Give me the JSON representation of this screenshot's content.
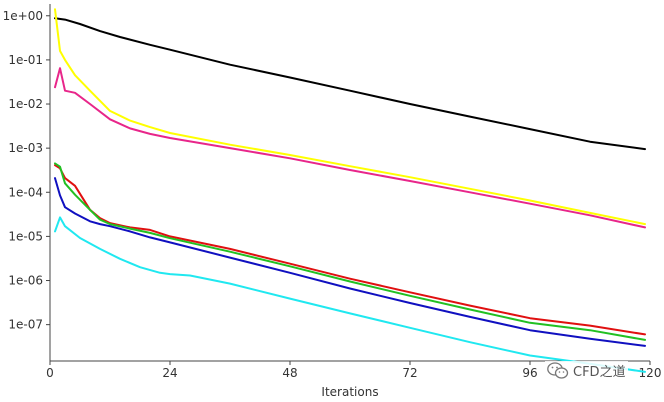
{
  "chart_data": {
    "type": "line",
    "xlabel": "Iterations",
    "ylabel": "",
    "xlim": [
      0,
      120
    ],
    "ylim": [
      1.5e-08,
      1.5
    ],
    "yscale": "log",
    "xticks": [
      0,
      24,
      48,
      72,
      96,
      120
    ],
    "xtick_labels": [
      "0",
      "24",
      "48",
      "72",
      "96",
      "120"
    ],
    "yticks": [
      1,
      0.1,
      0.01,
      0.001,
      0.0001,
      1e-05,
      1e-06,
      1e-07
    ],
    "ytick_labels": [
      "1e+00",
      "1e-01",
      "1e-02",
      "1e-03",
      "1e-04",
      "1e-05",
      "1e-06",
      "1e-07"
    ],
    "grid": false,
    "legend": "none",
    "series": [
      {
        "color": "#000000",
        "x": [
          1,
          3,
          6,
          10,
          14,
          20,
          24,
          36,
          48,
          60,
          72,
          84,
          96,
          108,
          119
        ],
        "y": [
          0.88,
          0.82,
          0.65,
          0.45,
          0.33,
          0.22,
          0.17,
          0.078,
          0.04,
          0.02,
          0.01,
          0.0052,
          0.0027,
          0.0014,
          0.00095
        ]
      },
      {
        "color": "#ffff00",
        "x": [
          1,
          2,
          3,
          5,
          8,
          12,
          16,
          20,
          24,
          36,
          48,
          60,
          72,
          84,
          96,
          108,
          119
        ],
        "y": [
          1.4,
          0.16,
          0.1,
          0.045,
          0.02,
          0.007,
          0.0042,
          0.003,
          0.0022,
          0.0012,
          0.0007,
          0.00039,
          0.00022,
          0.00012,
          6.5e-05,
          3.4e-05,
          1.9e-05
        ]
      },
      {
        "color": "#e8268a",
        "x": [
          1,
          2,
          3,
          5,
          8,
          12,
          16,
          20,
          24,
          36,
          48,
          60,
          72,
          84,
          96,
          108,
          119
        ],
        "y": [
          0.024,
          0.065,
          0.02,
          0.018,
          0.01,
          0.0045,
          0.0028,
          0.0021,
          0.0017,
          0.001,
          0.00059,
          0.00032,
          0.00018,
          0.0001,
          5.5e-05,
          3e-05,
          1.6e-05
        ]
      },
      {
        "color": "#e01010",
        "x": [
          1,
          2,
          3,
          5,
          8,
          10,
          12,
          16,
          20,
          24,
          36,
          48,
          60,
          72,
          84,
          96,
          108,
          119
        ],
        "y": [
          0.00041,
          0.00035,
          0.00021,
          0.00014,
          4e-05,
          2.6e-05,
          2e-05,
          1.6e-05,
          1.4e-05,
          1e-05,
          5.2e-06,
          2.4e-06,
          1.1e-06,
          5.4e-07,
          2.7e-07,
          1.4e-07,
          9.5e-08,
          6e-08
        ]
      },
      {
        "color": "#22c022",
        "x": [
          1,
          2,
          3,
          5,
          8,
          10,
          12,
          16,
          20,
          24,
          36,
          48,
          60,
          72,
          84,
          96,
          108,
          119
        ],
        "y": [
          0.00045,
          0.00038,
          0.00016,
          8.8e-05,
          4e-05,
          2.4e-05,
          1.9e-05,
          1.5e-05,
          1.2e-05,
          9.1e-06,
          4.5e-06,
          2.1e-06,
          9.5e-07,
          4.5e-07,
          2.2e-07,
          1.1e-07,
          7.5e-08,
          4.5e-08
        ]
      },
      {
        "color": "#1010c0",
        "x": [
          1,
          2,
          3,
          5,
          8,
          10,
          12,
          16,
          20,
          24,
          36,
          48,
          60,
          72,
          84,
          96,
          108,
          119
        ],
        "y": [
          0.00021,
          8.5e-05,
          4.6e-05,
          3.3e-05,
          2.2e-05,
          1.9e-05,
          1.7e-05,
          1.3e-05,
          9.5e-06,
          7.3e-06,
          3.3e-06,
          1.5e-06,
          6.6e-07,
          3.1e-07,
          1.5e-07,
          7.5e-08,
          4.8e-08,
          3.3e-08
        ]
      },
      {
        "color": "#20e8f0",
        "x": [
          1,
          2,
          3,
          6,
          10,
          14,
          18,
          22,
          24,
          28,
          36,
          48,
          60,
          72,
          84,
          96,
          108,
          119
        ],
        "y": [
          1.3e-05,
          2.7e-05,
          1.7e-05,
          9.2e-06,
          5.2e-06,
          3.1e-06,
          2e-06,
          1.5e-06,
          1.4e-06,
          1.3e-06,
          8.5e-07,
          3.9e-07,
          1.8e-07,
          8.5e-08,
          4e-08,
          2e-08,
          1.3e-08,
          8.5e-09
        ]
      }
    ]
  },
  "watermark": {
    "text": "CFD之道",
    "icon": "wechat-icon"
  }
}
